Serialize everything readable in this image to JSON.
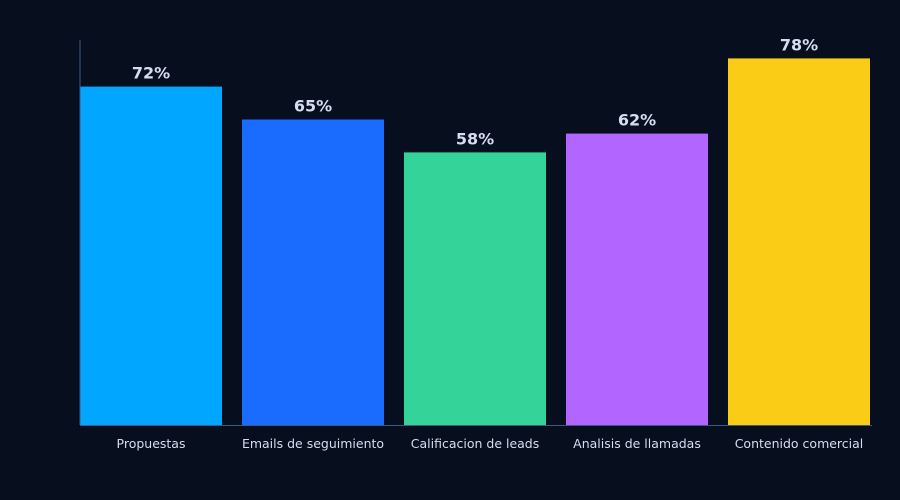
{
  "chart_data": {
    "type": "bar",
    "title": "",
    "xlabel": "",
    "ylabel": "",
    "ylim": [
      0,
      80
    ],
    "grid": false,
    "legend": "none",
    "value_format": "percent",
    "categories": [
      "Propuestas",
      "Emails de seguimiento",
      "Calificacion de leads",
      "Analisis de llamadas",
      "Contenido comercial"
    ],
    "values": [
      72,
      65,
      58,
      62,
      78
    ],
    "value_labels": [
      "72%",
      "65%",
      "58%",
      "62%",
      "78%"
    ],
    "colors": [
      "#00a6ff",
      "#1a6bff",
      "#34d399",
      "#b266ff",
      "#facc15"
    ]
  },
  "theme": {
    "background": "#070f1f",
    "axis_color": "#3b5b86",
    "text_color": "#d4deee"
  }
}
